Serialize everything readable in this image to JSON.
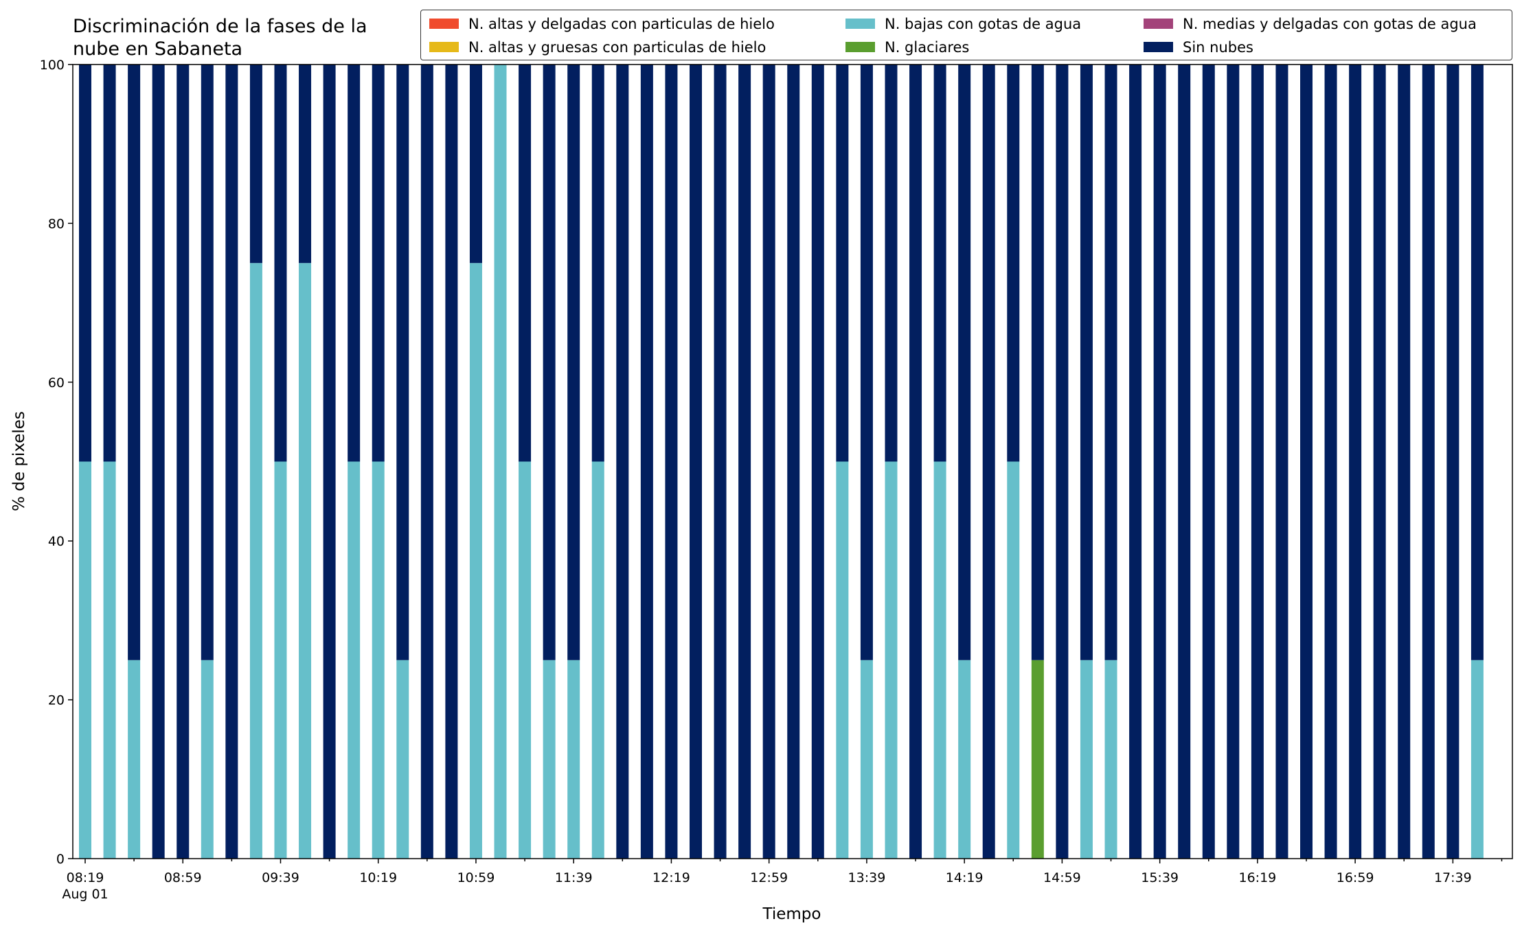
{
  "chart_data": {
    "type": "bar",
    "stacked": true,
    "title_lines": [
      "Discriminación de la fases de la",
      "nube en Sabaneta"
    ],
    "xlabel": "Tiempo",
    "ylabel": "% de pixeles",
    "ylim": [
      0,
      100
    ],
    "yticks": [
      0,
      20,
      40,
      60,
      80,
      100
    ],
    "x_tick_labels": [
      "08:19",
      "08:59",
      "09:39",
      "10:19",
      "10:59",
      "11:39",
      "12:19",
      "12:59",
      "13:39",
      "14:19",
      "14:59",
      "15:39",
      "16:19",
      "16:59",
      "17:39"
    ],
    "x_tick_sublabel": "Aug 01",
    "legend_position": "top-right",
    "series": [
      {
        "name": "N. altas y delgadas con particulas de hielo",
        "color": "#f04b2d",
        "values": [
          0,
          0,
          0,
          0,
          0,
          0,
          0,
          0,
          0,
          0,
          0,
          0,
          0,
          0,
          0,
          0,
          0,
          0,
          0,
          0,
          0,
          0,
          0,
          0,
          0,
          0,
          0,
          0,
          0,
          0,
          0,
          0,
          0,
          0,
          0,
          0,
          0,
          0,
          0,
          0,
          0,
          0,
          0,
          0,
          0,
          0,
          0,
          0,
          0,
          0,
          0,
          0,
          0,
          0,
          0,
          0,
          0,
          0,
          0
        ]
      },
      {
        "name": "N. altas y gruesas con particulas de hielo",
        "color": "#e6b919",
        "values": [
          0,
          0,
          0,
          0,
          0,
          0,
          0,
          0,
          0,
          0,
          0,
          0,
          0,
          0,
          0,
          0,
          0,
          0,
          0,
          0,
          0,
          0,
          0,
          0,
          0,
          0,
          0,
          0,
          0,
          0,
          0,
          0,
          0,
          0,
          0,
          0,
          0,
          0,
          0,
          0,
          0,
          0,
          0,
          0,
          0,
          0,
          0,
          0,
          0,
          0,
          0,
          0,
          0,
          0,
          0,
          0,
          0,
          0,
          0
        ]
      },
      {
        "name": "N. bajas con gotas de agua",
        "color": "#66bfca",
        "values": [
          50,
          50,
          25,
          0,
          0,
          25,
          0,
          75,
          50,
          75,
          0,
          50,
          50,
          25,
          0,
          0,
          75,
          100,
          50,
          25,
          25,
          50,
          0,
          0,
          0,
          0,
          0,
          0,
          0,
          0,
          0,
          50,
          25,
          50,
          0,
          50,
          25,
          0,
          50,
          0,
          0,
          25,
          25,
          0,
          0,
          0,
          0,
          0,
          0,
          0,
          0,
          0,
          0,
          0,
          0,
          0,
          0,
          25,
          0
        ]
      },
      {
        "name": "N. glaciares",
        "color": "#5a9e2f",
        "values": [
          0,
          0,
          0,
          0,
          0,
          0,
          0,
          0,
          0,
          0,
          0,
          0,
          0,
          0,
          0,
          0,
          0,
          0,
          0,
          0,
          0,
          0,
          0,
          0,
          0,
          0,
          0,
          0,
          0,
          0,
          0,
          0,
          0,
          0,
          0,
          0,
          0,
          0,
          0,
          25,
          0,
          0,
          0,
          0,
          0,
          0,
          0,
          0,
          0,
          0,
          0,
          0,
          0,
          0,
          0,
          0,
          0,
          0,
          0
        ]
      },
      {
        "name": "N. medias y delgadas con gotas de agua",
        "color": "#a3437a",
        "values": [
          0,
          0,
          0,
          0,
          0,
          0,
          0,
          0,
          0,
          0,
          0,
          0,
          0,
          0,
          0,
          0,
          0,
          0,
          0,
          0,
          0,
          0,
          0,
          0,
          0,
          0,
          0,
          0,
          0,
          0,
          0,
          0,
          0,
          0,
          0,
          0,
          0,
          0,
          0,
          0,
          0,
          0,
          0,
          0,
          0,
          0,
          0,
          0,
          0,
          0,
          0,
          0,
          0,
          0,
          0,
          0,
          0,
          0,
          0
        ]
      },
      {
        "name": "Sin nubes",
        "color": "#021f5f",
        "values": [
          50,
          50,
          75,
          100,
          100,
          75,
          100,
          25,
          50,
          25,
          100,
          50,
          50,
          75,
          100,
          100,
          25,
          0,
          50,
          75,
          75,
          50,
          100,
          100,
          100,
          100,
          100,
          100,
          100,
          100,
          100,
          50,
          75,
          50,
          100,
          50,
          75,
          100,
          50,
          75,
          100,
          75,
          75,
          100,
          100,
          100,
          100,
          100,
          100,
          100,
          100,
          100,
          100,
          100,
          100,
          100,
          100,
          75,
          0
        ]
      }
    ]
  }
}
